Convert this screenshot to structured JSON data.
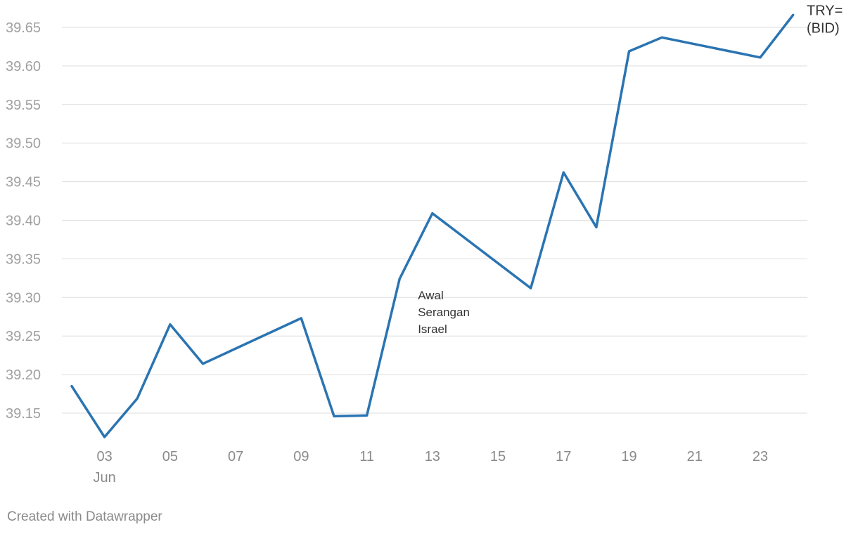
{
  "chart_data": {
    "type": "line",
    "x": [
      "2025-06-02",
      "2025-06-03",
      "2025-06-04",
      "2025-06-05",
      "2025-06-06",
      "2025-06-09",
      "2025-06-10",
      "2025-06-11",
      "2025-06-12",
      "2025-06-13",
      "2025-06-16",
      "2025-06-17",
      "2025-06-18",
      "2025-06-19",
      "2025-06-20",
      "2025-06-23",
      "2025-06-24"
    ],
    "series": [
      {
        "name": "TRY= (BID)",
        "color": "#2a74b2",
        "values": [
          39.185,
          39.119,
          39.169,
          39.265,
          39.214,
          39.273,
          39.146,
          39.147,
          39.324,
          39.409,
          39.312,
          39.462,
          39.391,
          39.619,
          39.637,
          39.611,
          39.666
        ]
      }
    ],
    "series_label_lines": [
      "TRY=",
      "(BID)"
    ],
    "ylim": [
      39.1,
      39.68
    ],
    "yticks": [
      "39.15",
      "39.20",
      "39.25",
      "39.30",
      "39.35",
      "39.40",
      "39.45",
      "39.50",
      "39.55",
      "39.60",
      "39.65"
    ],
    "xticks": [
      {
        "date": "2025-06-03",
        "label": "03",
        "sublabel": "Jun"
      },
      {
        "date": "2025-06-05",
        "label": "05"
      },
      {
        "date": "2025-06-07",
        "label": "07"
      },
      {
        "date": "2025-06-09",
        "label": "09"
      },
      {
        "date": "2025-06-11",
        "label": "11"
      },
      {
        "date": "2025-06-13",
        "label": "13"
      },
      {
        "date": "2025-06-15",
        "label": "15"
      },
      {
        "date": "2025-06-17",
        "label": "17"
      },
      {
        "date": "2025-06-19",
        "label": "19"
      },
      {
        "date": "2025-06-21",
        "label": "21"
      },
      {
        "date": "2025-06-23",
        "label": "23"
      }
    ],
    "annotation": {
      "date": "2025-06-12",
      "lines": [
        "Awal",
        "Serangan",
        "Israel"
      ]
    },
    "grid": true,
    "xlabel": "",
    "ylabel": ""
  },
  "footer": {
    "credit": "Created with Datawrapper"
  }
}
